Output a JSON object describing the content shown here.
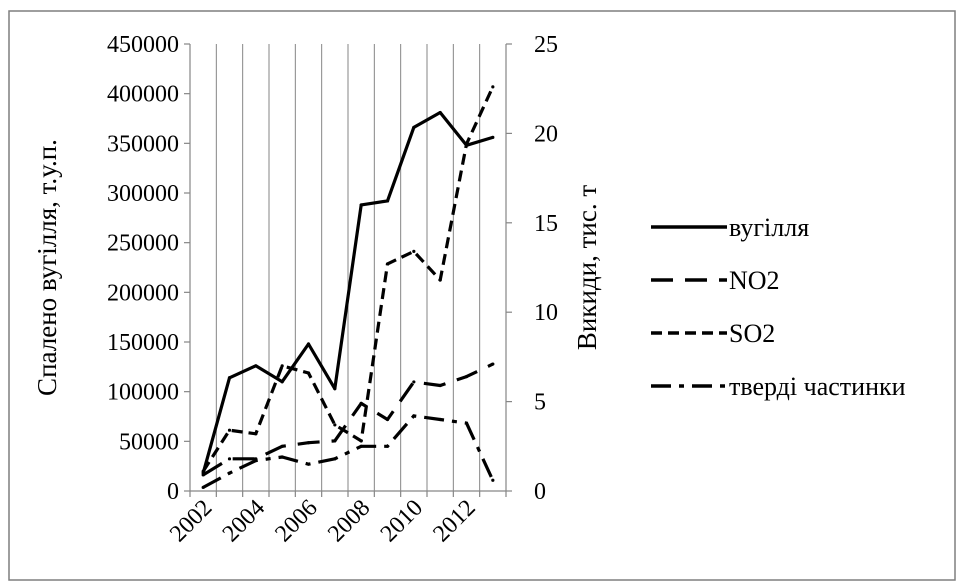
{
  "chart_data": {
    "type": "line",
    "title": "",
    "y_left_label": "Спалено вугілля, т.у.п.",
    "y_right_label": "Викиди, тис. т",
    "y_left_ticks": [
      "0",
      "50000",
      "100000",
      "150000",
      "200000",
      "250000",
      "300000",
      "350000",
      "400000",
      "450000"
    ],
    "y_right_ticks": [
      "0",
      "5",
      "10",
      "15",
      "20",
      "25"
    ],
    "x_ticks": [
      "2002",
      "2004",
      "2006",
      "2008",
      "2010",
      "2012"
    ],
    "y_left_lim": [
      0,
      450000
    ],
    "y_right_lim": [
      0,
      25
    ],
    "x_lim": [
      2001.5,
      2013.5
    ],
    "grid": "vertical",
    "legend_position": "right",
    "colors": {
      "axis": "#868686",
      "grid": "#868686",
      "series": "#000000",
      "frame": "#7f7f7f"
    },
    "series": [
      {
        "name": "вугілля",
        "axis": "left",
        "dash": "solid",
        "x": [
          2002,
          2003,
          2004,
          2005,
          2006,
          2007,
          2008,
          2009,
          2010,
          2011,
          2012,
          2013
        ],
        "y": [
          18000,
          114000,
          126000,
          110000,
          148000,
          103000,
          288000,
          292000,
          366000,
          381000,
          348000,
          356000
        ]
      },
      {
        "name": "NO2",
        "axis": "right",
        "dash": "long",
        "x": [
          2002,
          2003,
          2004,
          2005,
          2006,
          2007,
          2008,
          2009,
          2010,
          2011,
          2012,
          2013
        ],
        "y": [
          0.9,
          1.8,
          1.8,
          2.5,
          2.7,
          2.8,
          4.9,
          4.0,
          6.1,
          5.9,
          6.4,
          7.1
        ]
      },
      {
        "name": "SO2",
        "axis": "right",
        "dash": "short",
        "x": [
          2002,
          2003,
          2004,
          2005,
          2006,
          2007,
          2008,
          2009,
          2010,
          2011,
          2012,
          2013
        ],
        "y": [
          1.1,
          3.4,
          3.2,
          7.0,
          6.6,
          3.7,
          2.8,
          12.7,
          13.4,
          11.8,
          19.4,
          22.6
        ]
      },
      {
        "name": "тверді частинки",
        "axis": "right",
        "dash": "dashdot",
        "x": [
          2002,
          2003,
          2004,
          2005,
          2006,
          2007,
          2008,
          2009,
          2010,
          2011,
          2012,
          2013
        ],
        "y": [
          0.2,
          1.0,
          1.7,
          1.9,
          1.5,
          1.8,
          2.5,
          2.5,
          4.2,
          4.0,
          3.8,
          0.6
        ]
      }
    ]
  }
}
